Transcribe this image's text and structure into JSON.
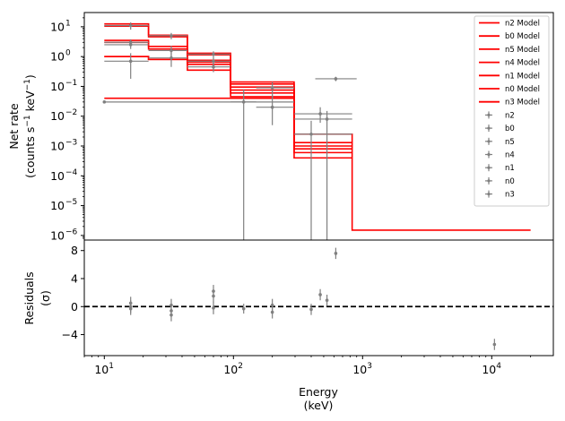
{
  "chart_data": [
    {
      "type": "line",
      "panel": "top",
      "ylabel_line1": "Net rate",
      "ylabel_line2_pre": "(counts s",
      "ylabel_line2_mid": " keV",
      "ylabel_line2_post": ")",
      "ylabel_sup": "−1",
      "xscale": "log",
      "yscale": "log",
      "xlim": [
        7,
        30000
      ],
      "ylim": [
        7e-07,
        30
      ],
      "yticks": [
        {
          "value": 10,
          "base": "10",
          "exp": "1"
        },
        {
          "value": 1,
          "base": "10",
          "exp": "0"
        },
        {
          "value": 0.1,
          "base": "10",
          "exp": "−1"
        },
        {
          "value": 0.01,
          "base": "10",
          "exp": "−2"
        },
        {
          "value": 0.001,
          "base": "10",
          "exp": "−3"
        },
        {
          "value": 0.0001,
          "base": "10",
          "exp": "−4"
        },
        {
          "value": 1e-05,
          "base": "10",
          "exp": "−5"
        },
        {
          "value": 1e-06,
          "base": "10",
          "exp": "−6"
        }
      ],
      "legend": {
        "placement": "top-right",
        "models": [
          "n2 Model",
          "b0 Model",
          "n5 Model",
          "n4 Model",
          "n1 Model",
          "n0 Model",
          "n3 Model"
        ],
        "data": [
          "n2",
          "b0",
          "n5",
          "n4",
          "n1",
          "n0",
          "n3"
        ]
      },
      "model_color": "#ff0000",
      "data_color": "#808080",
      "model_steps": [
        {
          "edges": [
            10,
            22,
            44,
            95,
            295,
            830,
            20000
          ],
          "values": [
            12.5,
            5.2,
            1.3,
            0.14,
            0.0025,
            1.5e-06
          ]
        },
        {
          "edges": [
            10,
            22,
            44,
            95,
            295,
            830
          ],
          "values": [
            10.5,
            4.6,
            1.15,
            0.12,
            0.0013
          ]
        },
        {
          "edges": [
            10,
            22,
            44,
            95,
            295,
            830
          ],
          "values": [
            3.5,
            2.2,
            0.75,
            0.095,
            0.001
          ]
        },
        {
          "edges": [
            10,
            22,
            44,
            95,
            295,
            830
          ],
          "values": [
            3.0,
            1.8,
            0.65,
            0.075,
            0.0008
          ]
        },
        {
          "edges": [
            10,
            22,
            44,
            95,
            295,
            830
          ],
          "values": [
            1.0,
            0.8,
            0.55,
            0.06,
            0.0006
          ]
        },
        {
          "edges": [
            10,
            22,
            44,
            95,
            295,
            830
          ],
          "values": [
            1.0,
            0.8,
            0.35,
            0.045,
            0.0004
          ]
        },
        {
          "edges": [
            10,
            295
          ],
          "values": [
            0.04
          ]
        }
      ],
      "data_points": [
        {
          "x": 16,
          "y": 11,
          "xlo": 10,
          "xhi": 22,
          "ylo": 8,
          "yhi": 14
        },
        {
          "x": 16,
          "y": 3.0,
          "xlo": 10,
          "xhi": 22,
          "ylo": 2.3,
          "yhi": 3.8
        },
        {
          "x": 16,
          "y": 2.5,
          "xlo": 10,
          "xhi": 22,
          "ylo": 1.8,
          "yhi": 3.3
        },
        {
          "x": 16,
          "y": 0.7,
          "xlo": 10,
          "xhi": 22,
          "ylo": 0.18,
          "yhi": 1.3
        },
        {
          "x": 33,
          "y": 5.0,
          "xlo": 22,
          "xhi": 44,
          "ylo": 3.8,
          "yhi": 6.2
        },
        {
          "x": 33,
          "y": 1.6,
          "xlo": 22,
          "xhi": 44,
          "ylo": 1.0,
          "yhi": 2.3
        },
        {
          "x": 33,
          "y": 0.9,
          "xlo": 22,
          "xhi": 44,
          "ylo": 0.45,
          "yhi": 1.5
        },
        {
          "x": 70,
          "y": 1.2,
          "xlo": 44,
          "xhi": 95,
          "ylo": 0.95,
          "yhi": 1.5
        },
        {
          "x": 70,
          "y": 0.7,
          "xlo": 44,
          "xhi": 95,
          "ylo": 0.5,
          "yhi": 0.95
        },
        {
          "x": 70,
          "y": 0.45,
          "xlo": 44,
          "xhi": 95,
          "ylo": 0.3,
          "yhi": 0.6
        },
        {
          "x": 120,
          "y": 0.03,
          "xlo": 95,
          "xhi": 150,
          "ylo": 7e-07,
          "yhi": 0.08
        },
        {
          "x": 200,
          "y": 0.09,
          "xlo": 150,
          "xhi": 295,
          "ylo": 0.04,
          "yhi": 0.14
        },
        {
          "x": 200,
          "y": 0.02,
          "xlo": 150,
          "xhi": 295,
          "ylo": 0.005,
          "yhi": 0.05
        },
        {
          "x": 400,
          "y": 0.0025,
          "xlo": 295,
          "xhi": 830,
          "ylo": 7e-07,
          "yhi": 0.007
        },
        {
          "x": 470,
          "y": 0.012,
          "xlo": 295,
          "xhi": 830,
          "ylo": 0.006,
          "yhi": 0.02
        },
        {
          "x": 530,
          "y": 0.008,
          "xlo": 295,
          "xhi": 830,
          "ylo": 7e-07,
          "yhi": 0.015
        },
        {
          "x": 620,
          "y": 0.18,
          "xlo": 430,
          "xhi": 900,
          "ylo": 0.15,
          "yhi": 0.21
        },
        {
          "x": 10,
          "y": 0.03,
          "xlo": 10,
          "xhi": 295
        }
      ]
    },
    {
      "type": "scatter",
      "panel": "bottom",
      "xlabel_line1": "Energy",
      "xlabel_line2": "(keV)",
      "ylabel_line1": "Residuals",
      "ylabel_line2": "(σ)",
      "xscale": "log",
      "xlim": [
        7,
        30000
      ],
      "ylim": [
        -7,
        9.5
      ],
      "yticks": [
        {
          "value": 8,
          "label": "8"
        },
        {
          "value": 4,
          "label": "4"
        },
        {
          "value": 0,
          "label": "0"
        },
        {
          "value": -4,
          "label": "−4"
        }
      ],
      "xticks": [
        {
          "value": 10,
          "base": "10",
          "exp": "1"
        },
        {
          "value": 100,
          "base": "10",
          "exp": "2"
        },
        {
          "value": 1000,
          "base": "10",
          "exp": "3"
        },
        {
          "value": 10000,
          "base": "10",
          "exp": "4"
        }
      ],
      "zero_line": true,
      "points": [
        {
          "x": 16,
          "y": 0.5,
          "err": 0.9
        },
        {
          "x": 16,
          "y": 0.0,
          "err": 0.9
        },
        {
          "x": 16,
          "y": -0.3,
          "err": 0.9
        },
        {
          "x": 33,
          "y": 0.2,
          "err": 0.9
        },
        {
          "x": 33,
          "y": -0.6,
          "err": 0.9
        },
        {
          "x": 33,
          "y": -1.2,
          "err": 0.9
        },
        {
          "x": 70,
          "y": 2.2,
          "err": 0.9
        },
        {
          "x": 70,
          "y": 1.5,
          "err": 0.9
        },
        {
          "x": 70,
          "y": -0.2,
          "err": 0.9
        },
        {
          "x": 120,
          "y": -0.3,
          "err": 0.7
        },
        {
          "x": 200,
          "y": 0.2,
          "err": 0.9
        },
        {
          "x": 200,
          "y": -0.8,
          "err": 0.9
        },
        {
          "x": 400,
          "y": -0.4,
          "err": 0.8
        },
        {
          "x": 470,
          "y": 1.7,
          "err": 0.8
        },
        {
          "x": 530,
          "y": 0.9,
          "err": 0.8
        },
        {
          "x": 620,
          "y": 7.6,
          "err": 0.8
        },
        {
          "x": 10500,
          "y": -5.4,
          "err": 0.8
        }
      ]
    }
  ]
}
